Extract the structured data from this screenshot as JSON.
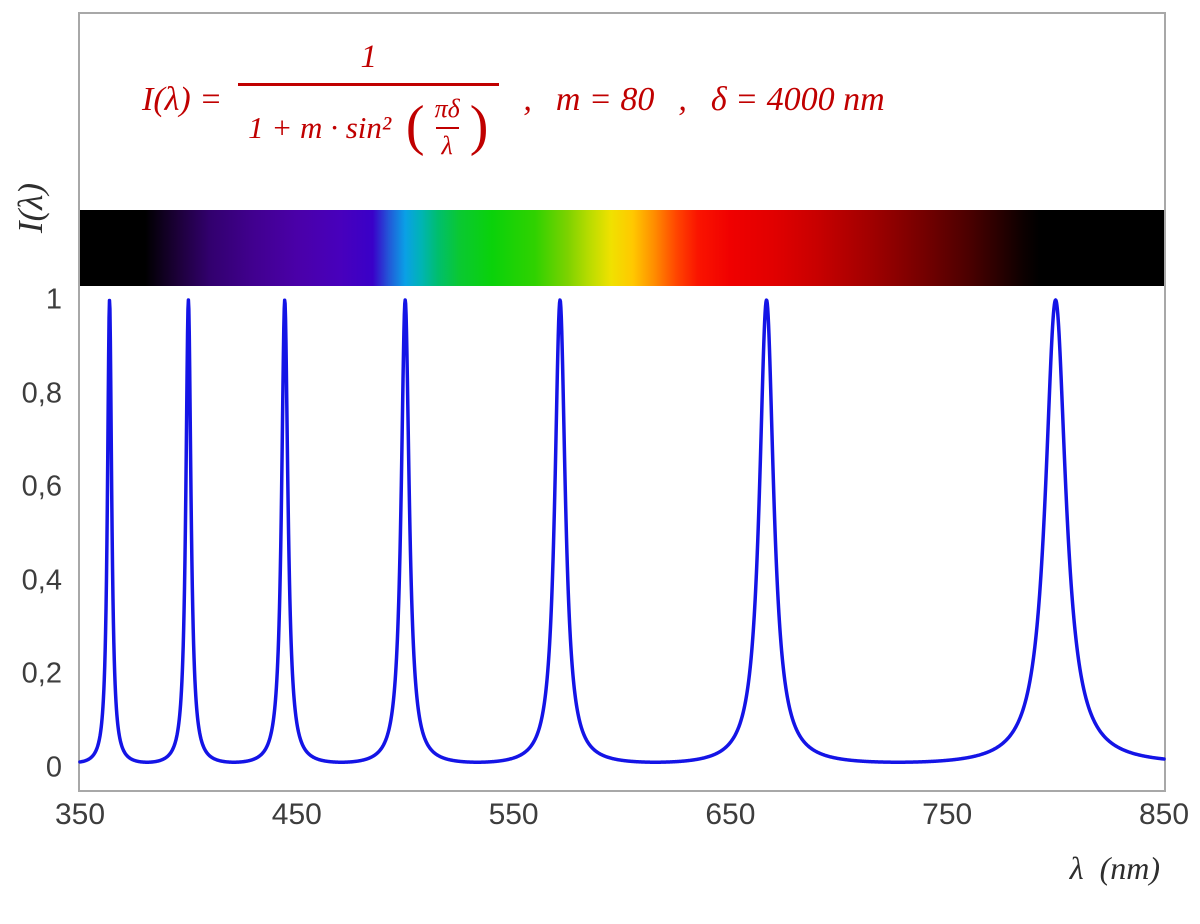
{
  "chart_data": {
    "type": "line",
    "formula_text": "I(λ) = 1 / (1 + m·sin²(πδ/λ))",
    "parameters": {
      "m": 80,
      "delta_nm": 4000
    },
    "x": {
      "label": "λ  (nm)",
      "min": 350,
      "max": 850,
      "ticks": [
        350,
        450,
        550,
        650,
        750,
        850
      ]
    },
    "y": {
      "label": "I(λ)",
      "min": 0,
      "max": 1,
      "ticks": [
        {
          "v": 0,
          "label": "0"
        },
        {
          "v": 0.2,
          "label": "0,2"
        },
        {
          "v": 0.4,
          "label": "0,4"
        },
        {
          "v": 0.6,
          "label": "0,6"
        },
        {
          "v": 0.8,
          "label": "0,8"
        },
        {
          "v": 1,
          "label": "1"
        }
      ]
    },
    "peaks_nm": [
      363.64,
      400,
      444.44,
      500,
      571.43,
      666.67,
      800
    ],
    "curve_color": "#1414e6",
    "formula_color": "#c00000",
    "frame_color": "#a8a8a8",
    "grid": "off",
    "legend": "none",
    "spectrum_gradient": [
      {
        "pos": 0,
        "color": "#000000"
      },
      {
        "pos": 6,
        "color": "#000000"
      },
      {
        "pos": 9,
        "color": "#1c0038"
      },
      {
        "pos": 12,
        "color": "#32006e"
      },
      {
        "pos": 16,
        "color": "#41008f"
      },
      {
        "pos": 20,
        "color": "#4a00a8"
      },
      {
        "pos": 24,
        "color": "#4800bc"
      },
      {
        "pos": 27,
        "color": "#3a00c8"
      },
      {
        "pos": 28.5,
        "color": "#2258d8"
      },
      {
        "pos": 30,
        "color": "#0aa0e6"
      },
      {
        "pos": 31.5,
        "color": "#00b4b4"
      },
      {
        "pos": 33,
        "color": "#00be6e"
      },
      {
        "pos": 35,
        "color": "#0ac832"
      },
      {
        "pos": 38,
        "color": "#0ad20a"
      },
      {
        "pos": 42,
        "color": "#30d200"
      },
      {
        "pos": 45,
        "color": "#7dd200"
      },
      {
        "pos": 47,
        "color": "#b9dc00"
      },
      {
        "pos": 49,
        "color": "#f0e100"
      },
      {
        "pos": 51,
        "color": "#ffc800"
      },
      {
        "pos": 53,
        "color": "#ff8c00"
      },
      {
        "pos": 55,
        "color": "#ff4600"
      },
      {
        "pos": 57,
        "color": "#fa1400"
      },
      {
        "pos": 60,
        "color": "#f00000"
      },
      {
        "pos": 64,
        "color": "#e10000"
      },
      {
        "pos": 68,
        "color": "#c80000"
      },
      {
        "pos": 73,
        "color": "#a00000"
      },
      {
        "pos": 78,
        "color": "#730000"
      },
      {
        "pos": 82,
        "color": "#4b0000"
      },
      {
        "pos": 85,
        "color": "#260000"
      },
      {
        "pos": 87,
        "color": "#0d0000"
      },
      {
        "pos": 88.5,
        "color": "#000000"
      },
      {
        "pos": 100,
        "color": "#000000"
      }
    ]
  },
  "formula": {
    "lhs": "I(λ)  =",
    "numerator": "1",
    "den_text": "1 + m · sin² ",
    "paren_open": "(",
    "paren_close": ")",
    "inner_num": "πδ",
    "inner_den": "λ",
    "sep1": ",",
    "m_label": "m = 80",
    "sep2": ",",
    "delta_label": "δ = 4000 nm"
  }
}
